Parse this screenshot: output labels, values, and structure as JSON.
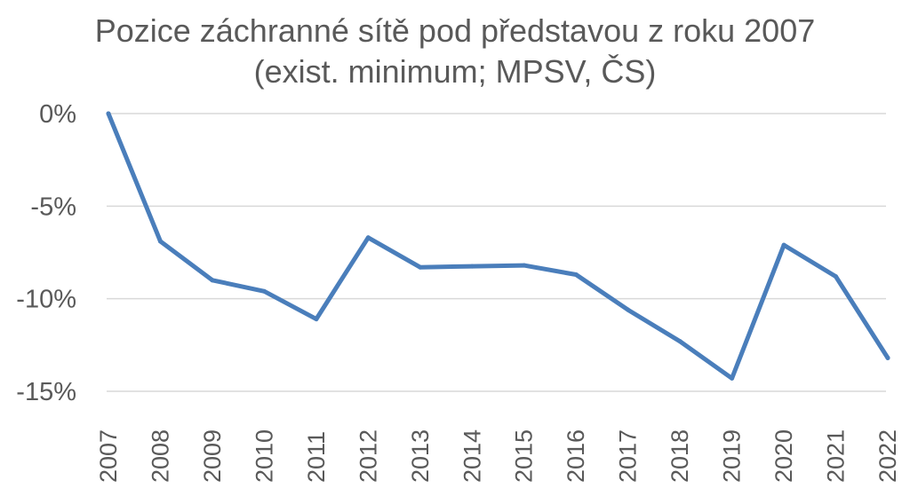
{
  "chart_data": {
    "type": "line",
    "title": "Pozice záchranné sítě pod představou z roku 2007",
    "subtitle": "(exist. minimum; MPSV, ČS)",
    "xlabel": "",
    "ylabel": "",
    "categories": [
      "2007",
      "2008",
      "2009",
      "2010",
      "2011",
      "2012",
      "2013",
      "2014",
      "2015",
      "2016",
      "2017",
      "2018",
      "2019",
      "2020",
      "2021",
      "2022"
    ],
    "series": [
      {
        "color": "#4a7ebb",
        "values": [
          0.0,
          -6.9,
          -9.0,
          -9.6,
          -11.1,
          -6.7,
          -8.3,
          -8.25,
          -8.2,
          -8.7,
          -10.6,
          -12.3,
          -14.3,
          -7.1,
          -8.8,
          -13.2
        ]
      }
    ],
    "ylim": [
      -15,
      0
    ],
    "yticks": [
      0,
      -5,
      -10,
      -15
    ],
    "ytick_labels": [
      "0%",
      "-5%",
      "-10%",
      "-15%"
    ],
    "grid": true,
    "legend": "none"
  }
}
